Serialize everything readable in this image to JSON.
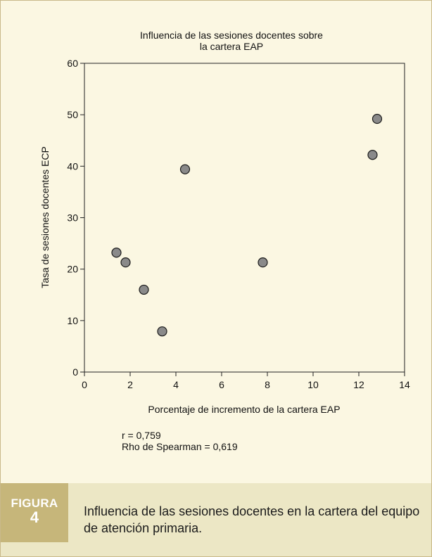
{
  "figure": {
    "label_word": "FIGURA",
    "label_number": "4",
    "caption": "Influencia de las sesiones docentes en la cartera del equipo de atención primaria."
  },
  "stats": {
    "r": "r = 0,759",
    "rho": "Rho de Spearman = 0,619"
  },
  "colors": {
    "background": "#fbf7e2",
    "caption_band": "#ece7c5",
    "label_box": "#c6b67a",
    "marker_fill": "#8a8a8a"
  },
  "chart_data": {
    "type": "scatter",
    "title": "Influencia de las sesiones docentes sobre la cartera EAP",
    "title_lines": [
      "Influencia de las sesiones docentes sobre",
      "la cartera EAP"
    ],
    "xlabel": "Porcentaje de incremento de la cartera EAP",
    "ylabel": "Tasa de sesiones docentes ECP",
    "xlim": [
      0,
      14
    ],
    "ylim": [
      0,
      60
    ],
    "x_ticks": [
      0,
      2,
      4,
      6,
      8,
      10,
      12,
      14
    ],
    "y_ticks": [
      0,
      10,
      20,
      30,
      40,
      50,
      60
    ],
    "grid": false,
    "points": [
      {
        "x": 1.4,
        "y": 23.2
      },
      {
        "x": 1.8,
        "y": 21.3
      },
      {
        "x": 2.6,
        "y": 16.0
      },
      {
        "x": 3.4,
        "y": 7.9
      },
      {
        "x": 4.4,
        "y": 39.4
      },
      {
        "x": 7.8,
        "y": 21.3
      },
      {
        "x": 12.6,
        "y": 42.2
      },
      {
        "x": 12.8,
        "y": 49.2
      }
    ]
  }
}
